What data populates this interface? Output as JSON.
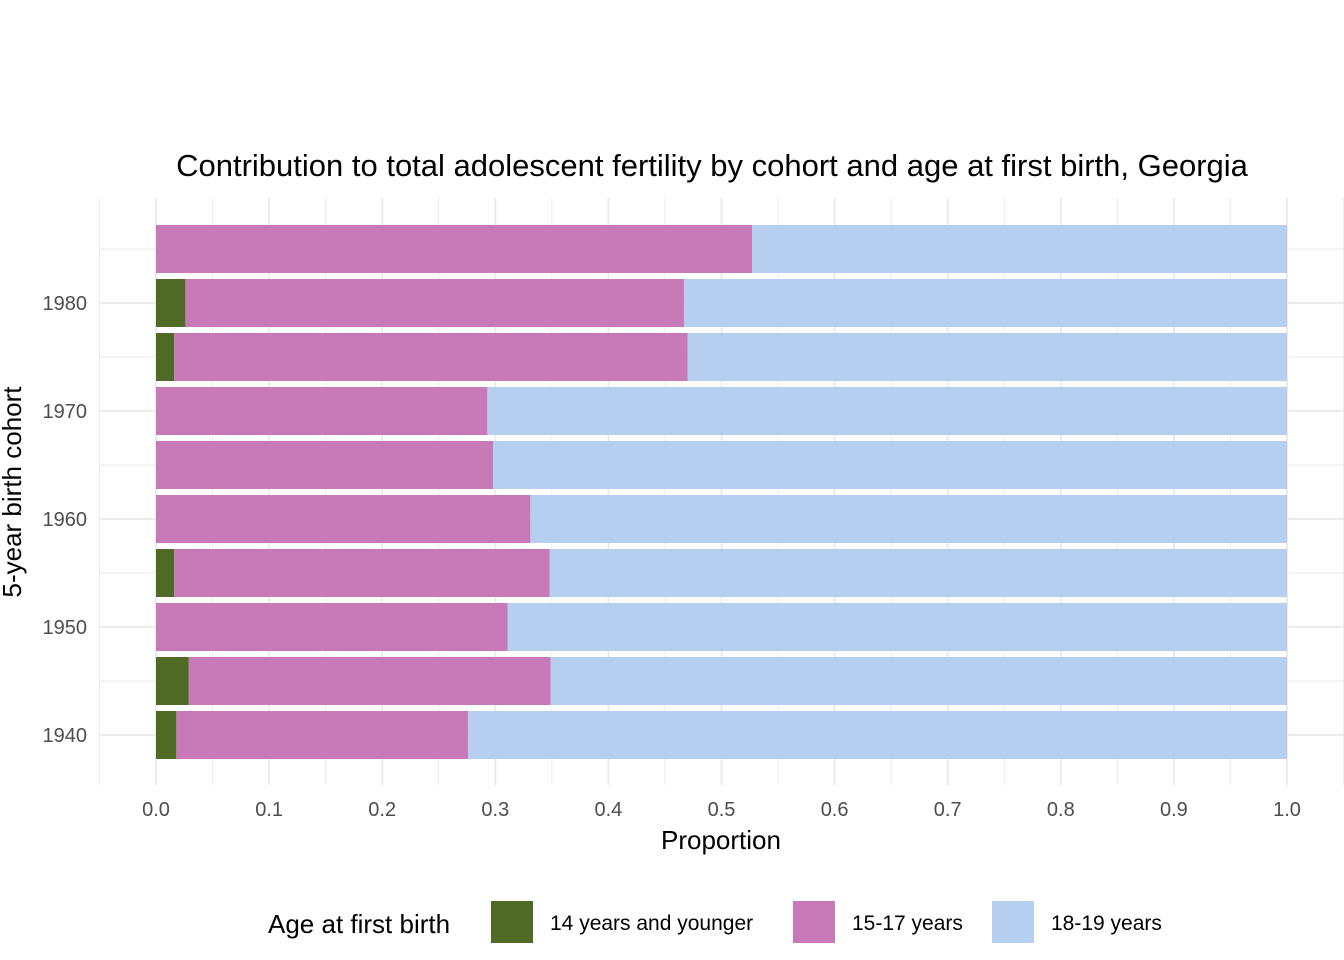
{
  "chart_data": {
    "type": "bar",
    "orientation": "horizontal",
    "stacked": true,
    "title": "Contribution to total adolescent fertility by cohort and age at first birth,  Georgia",
    "xlabel": "Proportion",
    "ylabel": "5-year birth cohort",
    "xlim": [
      0,
      1
    ],
    "xticks": [
      "0.0",
      "0.1",
      "0.2",
      "0.3",
      "0.4",
      "0.5",
      "0.6",
      "0.7",
      "0.8",
      "0.9",
      "1.0"
    ],
    "yticks": [
      "1940",
      "1950",
      "1960",
      "1970",
      "1980"
    ],
    "grid": true,
    "legend_title": "Age at first birth",
    "legend_position": "bottom",
    "categories": [
      1940,
      1945,
      1950,
      1955,
      1960,
      1965,
      1970,
      1975,
      1980,
      1985
    ],
    "series": [
      {
        "name": "14 years and younger",
        "color": "#4E6A24",
        "values": [
          0.018,
          0.029,
          0.0,
          0.016,
          0.0,
          0.0,
          0.0,
          0.016,
          0.026,
          0.0
        ]
      },
      {
        "name": "15-17 years",
        "color": "#C879B8",
        "values": [
          0.258,
          0.32,
          0.311,
          0.332,
          0.331,
          0.298,
          0.293,
          0.454,
          0.441,
          0.527
        ]
      },
      {
        "name": "18-19 years",
        "color": "#B6CEF0",
        "values": [
          0.724,
          0.651,
          0.689,
          0.652,
          0.669,
          0.702,
          0.707,
          0.53,
          0.533,
          0.473
        ]
      }
    ]
  }
}
